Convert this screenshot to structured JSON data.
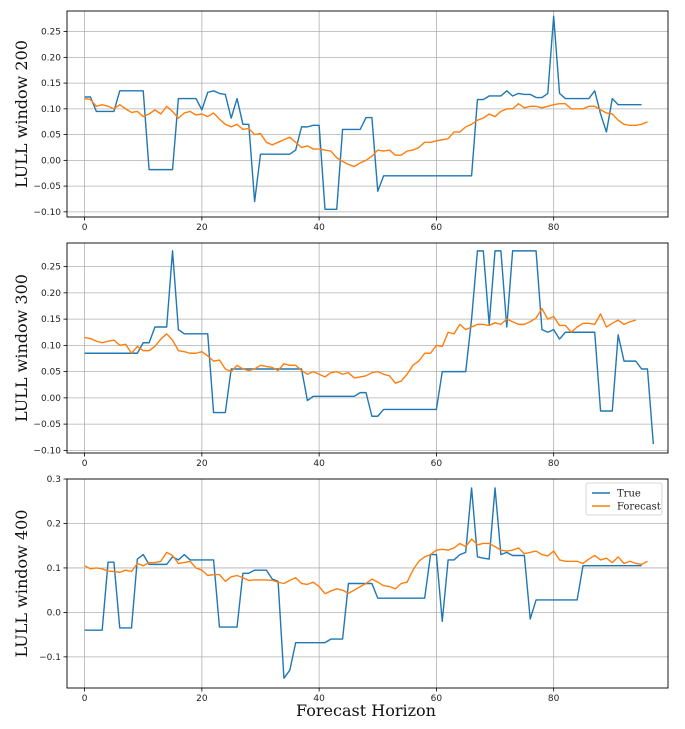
{
  "colors": {
    "true": "#1f77b4",
    "forecast": "#ff7f0e",
    "grid": "#b0b0b0",
    "axis": "#000000"
  },
  "figure_xlabel": "Forecast Horizon",
  "chart_data": [
    {
      "type": "line",
      "ylabel": "LULL window 200",
      "xlim": [
        -3,
        99.5
      ],
      "ylim": [
        -0.11,
        0.29
      ],
      "xticks": [
        0,
        20,
        40,
        60,
        80
      ],
      "xtick_labels": [
        "0",
        "20",
        "40",
        "60",
        "80"
      ],
      "yticks": [
        -0.1,
        -0.05,
        0.0,
        0.05,
        0.1,
        0.15,
        0.2,
        0.25
      ],
      "ytick_labels": [
        "−0.10",
        "−0.05",
        "0.00",
        "0.05",
        "0.10",
        "0.15",
        "0.20",
        "0.25"
      ],
      "grid": true,
      "legend": null,
      "series": [
        {
          "key": "true",
          "values": [
            0.123,
            0.123,
            0.095,
            0.095,
            0.095,
            0.095,
            0.135,
            0.135,
            0.135,
            0.135,
            0.135,
            -0.018,
            -0.018,
            -0.018,
            -0.018,
            -0.018,
            0.12,
            0.12,
            0.12,
            0.12,
            0.098,
            0.132,
            0.135,
            0.13,
            0.128,
            0.082,
            0.12,
            0.07,
            0.07,
            -0.08,
            0.012,
            0.012,
            0.012,
            0.012,
            0.012,
            0.012,
            0.02,
            0.065,
            0.065,
            0.068,
            0.068,
            -0.095,
            -0.095,
            -0.095,
            0.06,
            0.06,
            0.06,
            0.06,
            0.083,
            0.083,
            -0.06,
            -0.03,
            -0.03,
            -0.03,
            -0.03,
            -0.03,
            -0.03,
            -0.03,
            -0.03,
            -0.03,
            -0.03,
            -0.03,
            -0.03,
            -0.03,
            -0.03,
            -0.03,
            -0.03,
            0.118,
            0.118,
            0.125,
            0.125,
            0.125,
            0.135,
            0.125,
            0.13,
            0.128,
            0.128,
            0.122,
            0.122,
            0.13,
            0.28,
            0.13,
            0.12,
            0.12,
            0.12,
            0.12,
            0.12,
            0.135,
            0.09,
            0.055,
            0.12,
            0.108,
            0.108,
            0.108,
            0.108,
            0.108
          ]
        },
        {
          "key": "forecast",
          "values": [
            0.12,
            0.118,
            0.105,
            0.108,
            0.105,
            0.1,
            0.108,
            0.1,
            0.093,
            0.095,
            0.085,
            0.09,
            0.098,
            0.09,
            0.105,
            0.095,
            0.082,
            0.092,
            0.095,
            0.088,
            0.09,
            0.085,
            0.092,
            0.08,
            0.07,
            0.065,
            0.07,
            0.06,
            0.062,
            0.05,
            0.052,
            0.035,
            0.03,
            0.035,
            0.04,
            0.045,
            0.035,
            0.025,
            0.028,
            0.022,
            0.022,
            0.02,
            0.018,
            0.005,
            -0.002,
            -0.008,
            -0.012,
            -0.005,
            0.0,
            0.008,
            0.02,
            0.018,
            0.02,
            0.01,
            0.01,
            0.018,
            0.02,
            0.025,
            0.035,
            0.035,
            0.038,
            0.04,
            0.042,
            0.055,
            0.055,
            0.065,
            0.07,
            0.078,
            0.082,
            0.09,
            0.085,
            0.095,
            0.1,
            0.1,
            0.11,
            0.102,
            0.105,
            0.105,
            0.102,
            0.105,
            0.108,
            0.11,
            0.11,
            0.1,
            0.1,
            0.1,
            0.105,
            0.105,
            0.098,
            0.092,
            0.09,
            0.078,
            0.07,
            0.068,
            0.068,
            0.07,
            0.075
          ]
        }
      ]
    },
    {
      "type": "line",
      "ylabel": "LULL window 300",
      "xlim": [
        -3,
        99.5
      ],
      "ylim": [
        -0.105,
        0.295
      ],
      "xticks": [
        0,
        20,
        40,
        60,
        80
      ],
      "xtick_labels": [
        "0",
        "20",
        "40",
        "60",
        "80"
      ],
      "yticks": [
        -0.1,
        -0.05,
        0.0,
        0.05,
        0.1,
        0.15,
        0.2,
        0.25
      ],
      "ytick_labels": [
        "−0.10",
        "−0.05",
        "0.00",
        "0.05",
        "0.10",
        "0.15",
        "0.20",
        "0.25"
      ],
      "grid": true,
      "legend": null,
      "series": [
        {
          "key": "true",
          "values": [
            0.085,
            0.085,
            0.085,
            0.085,
            0.085,
            0.085,
            0.085,
            0.085,
            0.085,
            0.085,
            0.105,
            0.105,
            0.135,
            0.135,
            0.135,
            0.28,
            0.13,
            0.122,
            0.122,
            0.122,
            0.122,
            0.122,
            -0.028,
            -0.028,
            -0.028,
            0.055,
            0.055,
            0.055,
            0.055,
            0.055,
            0.055,
            0.055,
            0.055,
            0.055,
            0.055,
            0.055,
            0.055,
            0.055,
            -0.005,
            0.003,
            0.003,
            0.003,
            0.003,
            0.003,
            0.003,
            0.003,
            0.003,
            0.01,
            0.01,
            -0.035,
            -0.035,
            -0.022,
            -0.022,
            -0.022,
            -0.022,
            -0.022,
            -0.022,
            -0.022,
            -0.022,
            -0.022,
            -0.022,
            0.05,
            0.05,
            0.05,
            0.05,
            0.05,
            0.15,
            0.28,
            0.28,
            0.14,
            0.28,
            0.28,
            0.135,
            0.28,
            0.28,
            0.28,
            0.28,
            0.28,
            0.13,
            0.125,
            0.13,
            0.112,
            0.125,
            0.125,
            0.125,
            0.125,
            0.125,
            0.125,
            -0.025,
            -0.025,
            -0.025,
            0.12,
            0.07,
            0.07,
            0.07,
            0.055,
            0.055,
            -0.088
          ]
        },
        {
          "key": "forecast",
          "values": [
            0.115,
            0.113,
            0.108,
            0.105,
            0.108,
            0.11,
            0.1,
            0.102,
            0.085,
            0.098,
            0.09,
            0.09,
            0.098,
            0.112,
            0.122,
            0.11,
            0.09,
            0.088,
            0.085,
            0.085,
            0.088,
            0.08,
            0.07,
            0.072,
            0.055,
            0.05,
            0.062,
            0.055,
            0.052,
            0.055,
            0.062,
            0.06,
            0.058,
            0.052,
            0.065,
            0.062,
            0.062,
            0.052,
            0.045,
            0.05,
            0.045,
            0.04,
            0.048,
            0.05,
            0.045,
            0.048,
            0.038,
            0.04,
            0.042,
            0.048,
            0.05,
            0.045,
            0.042,
            0.028,
            0.032,
            0.045,
            0.062,
            0.07,
            0.085,
            0.085,
            0.1,
            0.098,
            0.125,
            0.122,
            0.14,
            0.13,
            0.135,
            0.14,
            0.14,
            0.138,
            0.143,
            0.14,
            0.15,
            0.145,
            0.14,
            0.14,
            0.145,
            0.152,
            0.17,
            0.15,
            0.155,
            0.138,
            0.138,
            0.125,
            0.135,
            0.142,
            0.142,
            0.14,
            0.16,
            0.135,
            0.142,
            0.148,
            0.14,
            0.145,
            0.148
          ]
        }
      ]
    },
    {
      "type": "line",
      "ylabel": "LULL window 400",
      "xlim": [
        -3,
        99.5
      ],
      "ylim": [
        -0.17,
        0.3
      ],
      "xticks": [
        0,
        20,
        40,
        60,
        80
      ],
      "xtick_labels": [
        "0",
        "20",
        "40",
        "60",
        "80"
      ],
      "yticks": [
        -0.1,
        0.0,
        0.1,
        0.2,
        0.3
      ],
      "ytick_labels": [
        "−0.1",
        "0.0",
        "0.1",
        "0.2",
        "0.3"
      ],
      "grid": true,
      "legend": "upper right",
      "legend_entries": [
        "True",
        "Forecast"
      ],
      "series": [
        {
          "key": "true",
          "values": [
            -0.04,
            -0.04,
            -0.04,
            -0.04,
            0.113,
            0.113,
            -0.035,
            -0.035,
            -0.035,
            0.12,
            0.13,
            0.108,
            0.108,
            0.108,
            0.108,
            0.125,
            0.118,
            0.13,
            0.118,
            0.118,
            0.118,
            0.118,
            0.118,
            -0.033,
            -0.033,
            -0.033,
            -0.033,
            0.088,
            0.088,
            0.095,
            0.095,
            0.095,
            0.075,
            0.07,
            -0.148,
            -0.13,
            -0.068,
            -0.068,
            -0.068,
            -0.068,
            -0.068,
            -0.068,
            -0.06,
            -0.06,
            -0.06,
            0.065,
            0.065,
            0.065,
            0.065,
            0.065,
            0.032,
            0.032,
            0.032,
            0.032,
            0.032,
            0.032,
            0.032,
            0.032,
            0.032,
            0.13,
            0.13,
            -0.02,
            0.118,
            0.118,
            0.13,
            0.135,
            0.28,
            0.125,
            0.122,
            0.12,
            0.28,
            0.13,
            0.135,
            0.128,
            0.128,
            0.128,
            -0.015,
            0.028,
            0.028,
            0.028,
            0.028,
            0.028,
            0.028,
            0.028,
            0.028,
            0.105,
            0.105,
            0.105,
            0.105,
            0.105,
            0.105,
            0.105,
            0.105,
            0.105,
            0.105,
            0.105
          ]
        },
        {
          "key": "forecast",
          "values": [
            0.105,
            0.098,
            0.1,
            0.098,
            0.093,
            0.092,
            0.09,
            0.095,
            0.092,
            0.11,
            0.105,
            0.112,
            0.112,
            0.115,
            0.135,
            0.128,
            0.11,
            0.112,
            0.115,
            0.1,
            0.095,
            0.083,
            0.085,
            0.085,
            0.07,
            0.08,
            0.083,
            0.078,
            0.072,
            0.073,
            0.073,
            0.073,
            0.072,
            0.068,
            0.065,
            0.072,
            0.078,
            0.065,
            0.063,
            0.068,
            0.058,
            0.042,
            0.048,
            0.053,
            0.05,
            0.043,
            0.05,
            0.058,
            0.065,
            0.075,
            0.068,
            0.06,
            0.058,
            0.053,
            0.065,
            0.068,
            0.095,
            0.115,
            0.125,
            0.13,
            0.14,
            0.142,
            0.14,
            0.145,
            0.155,
            0.148,
            0.165,
            0.152,
            0.155,
            0.155,
            0.148,
            0.14,
            0.138,
            0.14,
            0.145,
            0.132,
            0.135,
            0.138,
            0.13,
            0.127,
            0.138,
            0.118,
            0.115,
            0.115,
            0.115,
            0.11,
            0.12,
            0.128,
            0.118,
            0.122,
            0.112,
            0.125,
            0.11,
            0.115,
            0.11,
            0.108,
            0.115
          ]
        }
      ]
    }
  ]
}
